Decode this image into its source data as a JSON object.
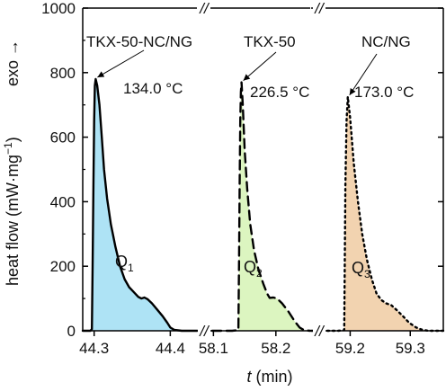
{
  "chart_data": {
    "type": "area",
    "title": "",
    "ylabel": "heat flow (mW·mg⁻¹)",
    "ylabel_parts": {
      "main": "heat flow (mW·mg",
      "sup": "−1",
      "close": ")"
    },
    "exo_label": "exo →",
    "xlabel_var": "t",
    "xlabel_unit": " (min)",
    "ylim": [
      0,
      1000
    ],
    "y_ticks": [
      "0",
      "200",
      "400",
      "600",
      "800",
      "1000"
    ],
    "y_tick_values": [
      0,
      200,
      400,
      600,
      800,
      1000
    ],
    "axis_break_mark": "//",
    "grid": false,
    "segments": [
      {
        "series": "TKX-50-NC/NG",
        "xlim": [
          44.285,
          44.435
        ],
        "x_ticks": [
          "44.3",
          "44.4"
        ],
        "x_tick_values": [
          44.3,
          44.4
        ],
        "fill": "#aee3f5",
        "line_style": "solid",
        "peak_label": "134.0 °C",
        "peak": {
          "x": 44.302,
          "y": 780
        },
        "heat_label": "Q",
        "heat_sub": "1",
        "points": [
          [
            44.285,
            0
          ],
          [
            44.295,
            0
          ],
          [
            44.297,
            5
          ],
          [
            44.298,
            200
          ],
          [
            44.299,
            450
          ],
          [
            44.3,
            650
          ],
          [
            44.301,
            760
          ],
          [
            44.302,
            780
          ],
          [
            44.304,
            760
          ],
          [
            44.307,
            700
          ],
          [
            44.31,
            600
          ],
          [
            44.313,
            500
          ],
          [
            44.317,
            410
          ],
          [
            44.322,
            330
          ],
          [
            44.328,
            260
          ],
          [
            44.334,
            200
          ],
          [
            44.34,
            160
          ],
          [
            44.346,
            135
          ],
          [
            44.35,
            125
          ],
          [
            44.354,
            115
          ],
          [
            44.358,
            105
          ],
          [
            44.362,
            100
          ],
          [
            44.366,
            103
          ],
          [
            44.37,
            98
          ],
          [
            44.376,
            85
          ],
          [
            44.383,
            65
          ],
          [
            44.39,
            45
          ],
          [
            44.396,
            25
          ],
          [
            44.4,
            10
          ],
          [
            44.405,
            3
          ],
          [
            44.415,
            0
          ],
          [
            44.435,
            0
          ]
        ]
      },
      {
        "series": "TKX-50",
        "xlim": [
          58.075,
          58.255
        ],
        "x_ticks": [
          "58.1",
          "58.2"
        ],
        "x_tick_values": [
          58.1,
          58.2
        ],
        "fill": "#dcf5c0",
        "line_style": "dashed",
        "peak_label": "226.5 °C",
        "peak": {
          "x": 58.145,
          "y": 770
        },
        "heat_label": "Q",
        "heat_sub": "2",
        "points": [
          [
            58.075,
            0
          ],
          [
            58.13,
            0
          ],
          [
            58.14,
            2
          ],
          [
            58.141,
            200
          ],
          [
            58.142,
            450
          ],
          [
            58.143,
            650
          ],
          [
            58.144,
            740
          ],
          [
            58.145,
            770
          ],
          [
            58.147,
            700
          ],
          [
            58.15,
            560
          ],
          [
            58.154,
            440
          ],
          [
            58.159,
            330
          ],
          [
            58.165,
            250
          ],
          [
            58.172,
            190
          ],
          [
            58.18,
            145
          ],
          [
            58.186,
            115
          ],
          [
            58.19,
            102
          ],
          [
            58.196,
            103
          ],
          [
            58.202,
            100
          ],
          [
            58.21,
            85
          ],
          [
            58.22,
            60
          ],
          [
            58.23,
            30
          ],
          [
            58.238,
            10
          ],
          [
            58.245,
            2
          ],
          [
            58.255,
            0
          ]
        ]
      },
      {
        "series": "NC/NG",
        "xlim": [
          59.135,
          59.355
        ],
        "x_ticks": [
          "59.2",
          "59.3"
        ],
        "x_tick_values": [
          59.2,
          59.3
        ],
        "fill": "#f2d3b0",
        "line_style": "dotted",
        "peak_label": "173.0 °C",
        "peak": {
          "x": 59.196,
          "y": 725
        },
        "heat_label": "Q",
        "heat_sub": "3",
        "points": [
          [
            59.135,
            0
          ],
          [
            59.18,
            0
          ],
          [
            59.19,
            2
          ],
          [
            59.191,
            200
          ],
          [
            59.192,
            450
          ],
          [
            59.194,
            650
          ],
          [
            59.196,
            725
          ],
          [
            59.2,
            660
          ],
          [
            59.206,
            520
          ],
          [
            59.213,
            400
          ],
          [
            59.22,
            300
          ],
          [
            59.228,
            220
          ],
          [
            59.236,
            160
          ],
          [
            59.244,
            115
          ],
          [
            59.252,
            95
          ],
          [
            59.26,
            85
          ],
          [
            59.268,
            80
          ],
          [
            59.277,
            65
          ],
          [
            59.288,
            45
          ],
          [
            59.298,
            25
          ],
          [
            59.31,
            10
          ],
          [
            59.32,
            3
          ],
          [
            59.33,
            0
          ],
          [
            59.355,
            0
          ]
        ]
      }
    ]
  }
}
